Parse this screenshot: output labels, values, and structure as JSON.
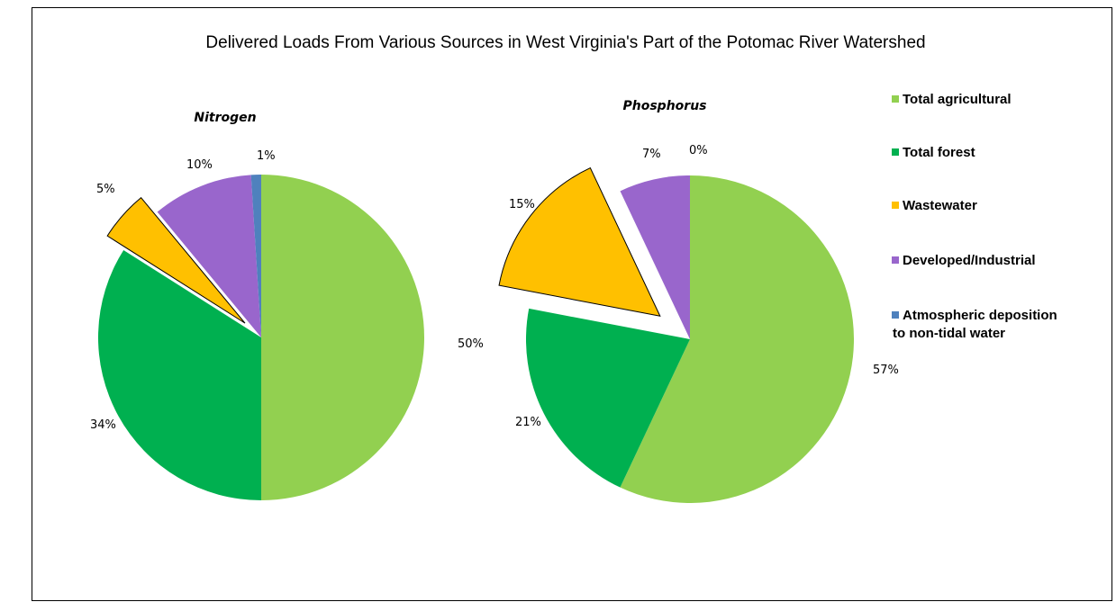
{
  "chart_data": {
    "type": "pie",
    "title": "Delivered Loads From Various Sources in West Virginia's Part of the Potomac River Watershed",
    "categories": [
      "Total agricultural",
      "Total forest",
      "Wastewater",
      "Developed/Industrial",
      "Atmospheric deposition to non-tidal water"
    ],
    "colors": [
      "#92d050",
      "#00b050",
      "#ffc000",
      "#9966cc",
      "#4f81bd"
    ],
    "legend_position": "right",
    "pies": [
      {
        "name": "Nitrogen",
        "values": [
          50,
          34,
          5,
          10,
          1
        ],
        "labels": [
          "50%",
          "34%",
          "5%",
          "10%",
          "1%"
        ],
        "exploded": "Wastewater"
      },
      {
        "name": "Phosphorus",
        "values": [
          57,
          21,
          15,
          7,
          0
        ],
        "labels": [
          "57%",
          "21%",
          "15%",
          "7%",
          "0%"
        ],
        "exploded": "Wastewater"
      }
    ]
  }
}
